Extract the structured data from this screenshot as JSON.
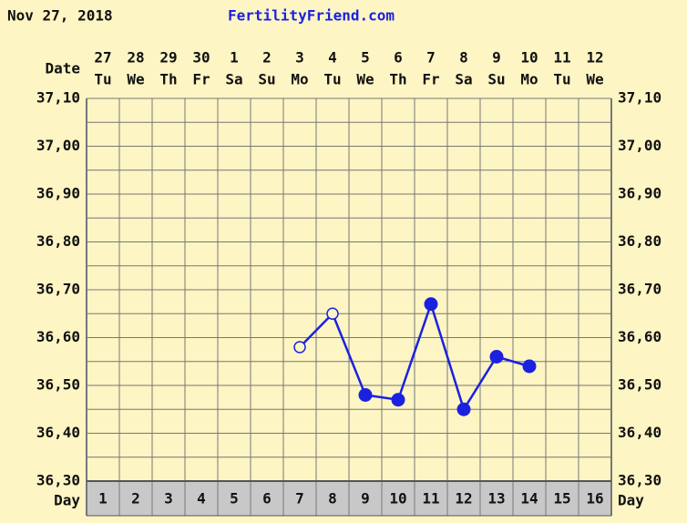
{
  "chart_data": {
    "type": "line",
    "title": "Nov 27, 2018",
    "subtitle": "FertilityFriend.com",
    "date_label": "Date",
    "day_label": "Day",
    "categories": [
      "27",
      "28",
      "29",
      "30",
      "1",
      "2",
      "3",
      "4",
      "5",
      "6",
      "7",
      "8",
      "9",
      "10",
      "11",
      "12"
    ],
    "weekdays": [
      "Tu",
      "We",
      "Th",
      "Fr",
      "Sa",
      "Su",
      "Mo",
      "Tu",
      "We",
      "Th",
      "Fr",
      "Sa",
      "Su",
      "Mo",
      "Tu",
      "We"
    ],
    "days": [
      1,
      2,
      3,
      4,
      5,
      6,
      7,
      8,
      9,
      10,
      11,
      12,
      13,
      14,
      15,
      16
    ],
    "series": [
      {
        "color": "#1a22e0",
        "values": [
          null,
          null,
          null,
          null,
          null,
          null,
          36.58,
          36.65,
          36.48,
          36.47,
          36.67,
          36.45,
          36.56,
          36.54,
          null,
          null
        ],
        "markers": [
          null,
          null,
          null,
          null,
          null,
          null,
          "open",
          "open",
          "filled",
          "filled",
          "filled",
          "filled",
          "filled",
          "filled",
          null,
          null
        ]
      }
    ],
    "ylim": [
      36.3,
      37.1
    ],
    "yticks": [
      {
        "value": 36.3,
        "label": "36,30"
      },
      {
        "value": 36.4,
        "label": "36,40"
      },
      {
        "value": 36.5,
        "label": "36,50"
      },
      {
        "value": 36.6,
        "label": "36,60"
      },
      {
        "value": 36.7,
        "label": "36,70"
      },
      {
        "value": 36.8,
        "label": "36,80"
      },
      {
        "value": 36.9,
        "label": "36,90"
      },
      {
        "value": 37.0,
        "label": "37,00"
      },
      {
        "value": 37.1,
        "label": "37,10"
      }
    ],
    "minor_yticks": [
      36.35,
      36.45,
      36.55,
      36.65,
      36.75,
      36.85,
      36.95,
      37.05
    ],
    "grid": true
  }
}
